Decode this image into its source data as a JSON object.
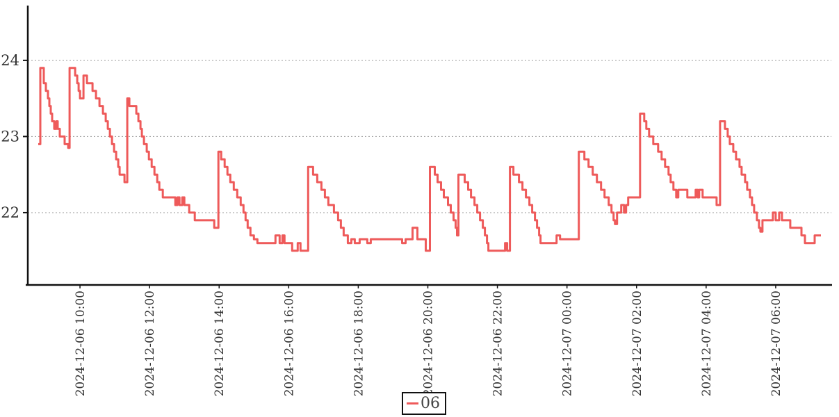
{
  "chart_data": {
    "type": "line",
    "interpolation": "step-after",
    "title": "",
    "xlabel": "",
    "ylabel": "",
    "grid": "horizontal-dotted-at-y-ticks",
    "background": "#ffffff",
    "axis_color": "#111111",
    "gridline_color": "#999999",
    "tick_label_color": "#333333",
    "x_axis": {
      "unit": "decimal hours since 2024-12-06 00:00",
      "range": [
        8.5,
        31.6
      ],
      "ticks": [
        {
          "t": 10,
          "label": "2024-12-06 10:00"
        },
        {
          "t": 12,
          "label": "2024-12-06 12:00"
        },
        {
          "t": 14,
          "label": "2024-12-06 14:00"
        },
        {
          "t": 16,
          "label": "2024-12-06 16:00"
        },
        {
          "t": 18,
          "label": "2024-12-06 18:00"
        },
        {
          "t": 20,
          "label": "2024-12-06 20:00"
        },
        {
          "t": 22,
          "label": "2024-12-06 22:00"
        },
        {
          "t": 24,
          "label": "2024-12-07 00:00"
        },
        {
          "t": 26,
          "label": "2024-12-07 02:00"
        },
        {
          "t": 28,
          "label": "2024-12-07 04:00"
        },
        {
          "t": 30,
          "label": "2024-12-07 06:00"
        }
      ]
    },
    "y_axis": {
      "range": [
        21.05,
        24.72
      ],
      "ticks": [
        22,
        23,
        24
      ]
    },
    "legend": {
      "position": "bottom-center",
      "entries": [
        {
          "label": "06",
          "color": "#ee5a5a"
        }
      ]
    },
    "series": [
      {
        "name": "06",
        "color": "#ee5a5a",
        "line_width": 3,
        "t_end": 31.3,
        "points": [
          [
            8.8,
            22.9
          ],
          [
            8.86,
            23.9
          ],
          [
            8.96,
            23.7
          ],
          [
            9.02,
            23.6
          ],
          [
            9.08,
            23.5
          ],
          [
            9.12,
            23.4
          ],
          [
            9.16,
            23.3
          ],
          [
            9.2,
            23.2
          ],
          [
            9.26,
            23.1
          ],
          [
            9.32,
            23.2
          ],
          [
            9.36,
            23.1
          ],
          [
            9.42,
            23.0
          ],
          [
            9.56,
            22.9
          ],
          [
            9.66,
            22.85
          ],
          [
            9.7,
            23.9
          ],
          [
            9.86,
            23.8
          ],
          [
            9.92,
            23.7
          ],
          [
            9.96,
            23.6
          ],
          [
            10.0,
            23.5
          ],
          [
            10.1,
            23.8
          ],
          [
            10.2,
            23.7
          ],
          [
            10.36,
            23.6
          ],
          [
            10.46,
            23.5
          ],
          [
            10.56,
            23.4
          ],
          [
            10.66,
            23.3
          ],
          [
            10.74,
            23.2
          ],
          [
            10.8,
            23.1
          ],
          [
            10.86,
            23.0
          ],
          [
            10.92,
            22.9
          ],
          [
            10.98,
            22.8
          ],
          [
            11.04,
            22.7
          ],
          [
            11.1,
            22.6
          ],
          [
            11.14,
            22.5
          ],
          [
            11.28,
            22.4
          ],
          [
            11.36,
            23.5
          ],
          [
            11.42,
            23.4
          ],
          [
            11.62,
            23.3
          ],
          [
            11.68,
            23.2
          ],
          [
            11.74,
            23.1
          ],
          [
            11.78,
            23.0
          ],
          [
            11.84,
            22.9
          ],
          [
            11.92,
            22.8
          ],
          [
            11.98,
            22.7
          ],
          [
            12.06,
            22.6
          ],
          [
            12.14,
            22.5
          ],
          [
            12.22,
            22.4
          ],
          [
            12.28,
            22.3
          ],
          [
            12.38,
            22.2
          ],
          [
            12.74,
            22.1
          ],
          [
            12.8,
            22.2
          ],
          [
            12.86,
            22.1
          ],
          [
            12.94,
            22.2
          ],
          [
            13.0,
            22.1
          ],
          [
            13.14,
            22.0
          ],
          [
            13.3,
            21.9
          ],
          [
            13.86,
            21.8
          ],
          [
            13.98,
            22.8
          ],
          [
            14.06,
            22.7
          ],
          [
            14.16,
            22.6
          ],
          [
            14.24,
            22.5
          ],
          [
            14.32,
            22.4
          ],
          [
            14.42,
            22.3
          ],
          [
            14.52,
            22.2
          ],
          [
            14.62,
            22.1
          ],
          [
            14.7,
            22.0
          ],
          [
            14.76,
            21.9
          ],
          [
            14.82,
            21.8
          ],
          [
            14.9,
            21.7
          ],
          [
            15.0,
            21.65
          ],
          [
            15.1,
            21.6
          ],
          [
            15.62,
            21.7
          ],
          [
            15.74,
            21.6
          ],
          [
            15.82,
            21.7
          ],
          [
            15.88,
            21.6
          ],
          [
            16.1,
            21.5
          ],
          [
            16.26,
            21.6
          ],
          [
            16.34,
            21.5
          ],
          [
            16.56,
            22.6
          ],
          [
            16.7,
            22.5
          ],
          [
            16.82,
            22.4
          ],
          [
            16.94,
            22.3
          ],
          [
            17.04,
            22.2
          ],
          [
            17.14,
            22.1
          ],
          [
            17.3,
            22.0
          ],
          [
            17.42,
            21.9
          ],
          [
            17.5,
            21.8
          ],
          [
            17.58,
            21.7
          ],
          [
            17.7,
            21.6
          ],
          [
            17.8,
            21.65
          ],
          [
            17.9,
            21.6
          ],
          [
            18.04,
            21.65
          ],
          [
            18.26,
            21.6
          ],
          [
            18.36,
            21.65
          ],
          [
            19.26,
            21.6
          ],
          [
            19.36,
            21.65
          ],
          [
            19.56,
            21.8
          ],
          [
            19.7,
            21.65
          ],
          [
            19.94,
            21.5
          ],
          [
            20.06,
            22.6
          ],
          [
            20.2,
            22.5
          ],
          [
            20.28,
            22.4
          ],
          [
            20.38,
            22.3
          ],
          [
            20.46,
            22.2
          ],
          [
            20.58,
            22.1
          ],
          [
            20.66,
            22.0
          ],
          [
            20.74,
            21.9
          ],
          [
            20.8,
            21.8
          ],
          [
            20.84,
            21.7
          ],
          [
            20.88,
            22.5
          ],
          [
            21.06,
            22.4
          ],
          [
            21.16,
            22.3
          ],
          [
            21.24,
            22.2
          ],
          [
            21.34,
            22.1
          ],
          [
            21.42,
            22.0
          ],
          [
            21.5,
            21.9
          ],
          [
            21.58,
            21.8
          ],
          [
            21.64,
            21.7
          ],
          [
            21.7,
            21.6
          ],
          [
            21.74,
            21.5
          ],
          [
            22.22,
            21.6
          ],
          [
            22.28,
            21.5
          ],
          [
            22.36,
            22.6
          ],
          [
            22.46,
            22.5
          ],
          [
            22.62,
            22.4
          ],
          [
            22.72,
            22.3
          ],
          [
            22.82,
            22.2
          ],
          [
            22.92,
            22.1
          ],
          [
            23.0,
            22.0
          ],
          [
            23.08,
            21.9
          ],
          [
            23.14,
            21.8
          ],
          [
            23.2,
            21.7
          ],
          [
            23.24,
            21.6
          ],
          [
            23.7,
            21.7
          ],
          [
            23.8,
            21.65
          ],
          [
            24.34,
            22.8
          ],
          [
            24.5,
            22.7
          ],
          [
            24.62,
            22.6
          ],
          [
            24.74,
            22.5
          ],
          [
            24.86,
            22.4
          ],
          [
            24.98,
            22.3
          ],
          [
            25.08,
            22.2
          ],
          [
            25.2,
            22.1
          ],
          [
            25.28,
            22.0
          ],
          [
            25.34,
            21.9
          ],
          [
            25.38,
            21.85
          ],
          [
            25.44,
            22.0
          ],
          [
            25.56,
            22.1
          ],
          [
            25.64,
            22.0
          ],
          [
            25.7,
            22.1
          ],
          [
            25.76,
            22.2
          ],
          [
            26.1,
            23.3
          ],
          [
            26.22,
            23.2
          ],
          [
            26.28,
            23.1
          ],
          [
            26.36,
            23.0
          ],
          [
            26.48,
            22.9
          ],
          [
            26.62,
            22.8
          ],
          [
            26.72,
            22.7
          ],
          [
            26.82,
            22.6
          ],
          [
            26.92,
            22.5
          ],
          [
            26.98,
            22.4
          ],
          [
            27.06,
            22.3
          ],
          [
            27.14,
            22.2
          ],
          [
            27.2,
            22.3
          ],
          [
            27.46,
            22.2
          ],
          [
            27.7,
            22.3
          ],
          [
            27.76,
            22.2
          ],
          [
            27.8,
            22.3
          ],
          [
            27.9,
            22.2
          ],
          [
            28.3,
            22.1
          ],
          [
            28.4,
            23.2
          ],
          [
            28.54,
            23.1
          ],
          [
            28.62,
            23.0
          ],
          [
            28.68,
            22.9
          ],
          [
            28.78,
            22.8
          ],
          [
            28.86,
            22.7
          ],
          [
            28.96,
            22.6
          ],
          [
            29.02,
            22.5
          ],
          [
            29.12,
            22.4
          ],
          [
            29.18,
            22.3
          ],
          [
            29.26,
            22.2
          ],
          [
            29.32,
            22.1
          ],
          [
            29.38,
            22.0
          ],
          [
            29.46,
            21.9
          ],
          [
            29.52,
            21.8
          ],
          [
            29.56,
            21.75
          ],
          [
            29.62,
            21.9
          ],
          [
            29.92,
            22.0
          ],
          [
            30.0,
            21.9
          ],
          [
            30.1,
            22.0
          ],
          [
            30.18,
            21.9
          ],
          [
            30.42,
            21.8
          ],
          [
            30.74,
            21.7
          ],
          [
            30.84,
            21.6
          ],
          [
            31.12,
            21.7
          ]
        ]
      }
    ]
  }
}
